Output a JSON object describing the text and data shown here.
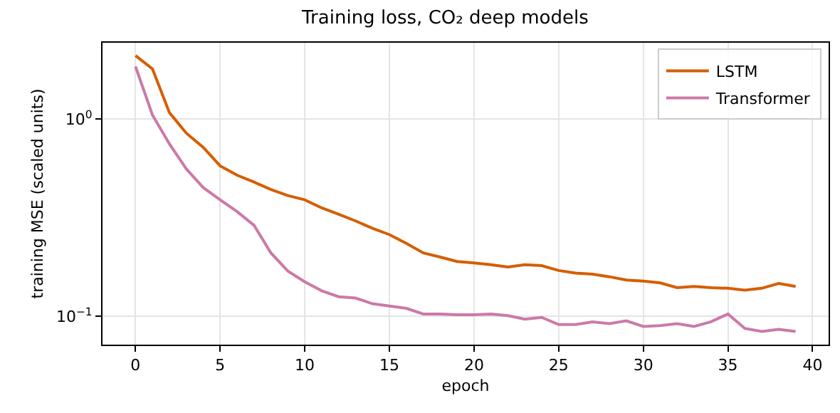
{
  "chart_data": {
    "type": "line",
    "title": "Training loss, CO₂ deep models",
    "xlabel": "epoch",
    "ylabel": "training MSE (scaled units)",
    "x": [
      0,
      1,
      2,
      3,
      4,
      5,
      6,
      7,
      8,
      9,
      10,
      11,
      12,
      13,
      14,
      15,
      16,
      17,
      18,
      19,
      20,
      21,
      22,
      23,
      24,
      25,
      26,
      27,
      28,
      29,
      30,
      31,
      32,
      33,
      34,
      35,
      36,
      37,
      38,
      39
    ],
    "series": [
      {
        "name": "LSTM",
        "color": "#d55e00",
        "values": [
          2.1,
          1.8,
          1.08,
          0.85,
          0.72,
          0.58,
          0.52,
          0.48,
          0.44,
          0.41,
          0.39,
          0.355,
          0.33,
          0.305,
          0.28,
          0.26,
          0.235,
          0.21,
          0.2,
          0.19,
          0.187,
          0.183,
          0.178,
          0.183,
          0.181,
          0.171,
          0.166,
          0.164,
          0.159,
          0.153,
          0.151,
          0.148,
          0.14,
          0.142,
          0.14,
          0.139,
          0.136,
          0.139,
          0.147,
          0.142
        ]
      },
      {
        "name": "Transformer",
        "color": "#cc79a7",
        "values": [
          1.85,
          1.05,
          0.75,
          0.56,
          0.45,
          0.39,
          0.34,
          0.29,
          0.21,
          0.17,
          0.15,
          0.135,
          0.126,
          0.124,
          0.116,
          0.113,
          0.11,
          0.103,
          0.103,
          0.102,
          0.102,
          0.103,
          0.101,
          0.097,
          0.099,
          0.091,
          0.091,
          0.094,
          0.092,
          0.095,
          0.089,
          0.09,
          0.092,
          0.089,
          0.094,
          0.103,
          0.087,
          0.084,
          0.086,
          0.084
        ]
      }
    ],
    "xlim": [
      -1.95,
      40.95
    ],
    "xticks": [
      0,
      5,
      10,
      15,
      20,
      25,
      30,
      35,
      40
    ],
    "ylim": [
      0.072,
      2.44
    ],
    "yticks": [
      {
        "value": 0.1,
        "label": "10$^{−1}$"
      },
      {
        "value": 1,
        "label": "10$^{0}$"
      }
    ],
    "log": true,
    "grid": true,
    "legend": "top right",
    "marker": "none",
    "line_style": "solid"
  }
}
